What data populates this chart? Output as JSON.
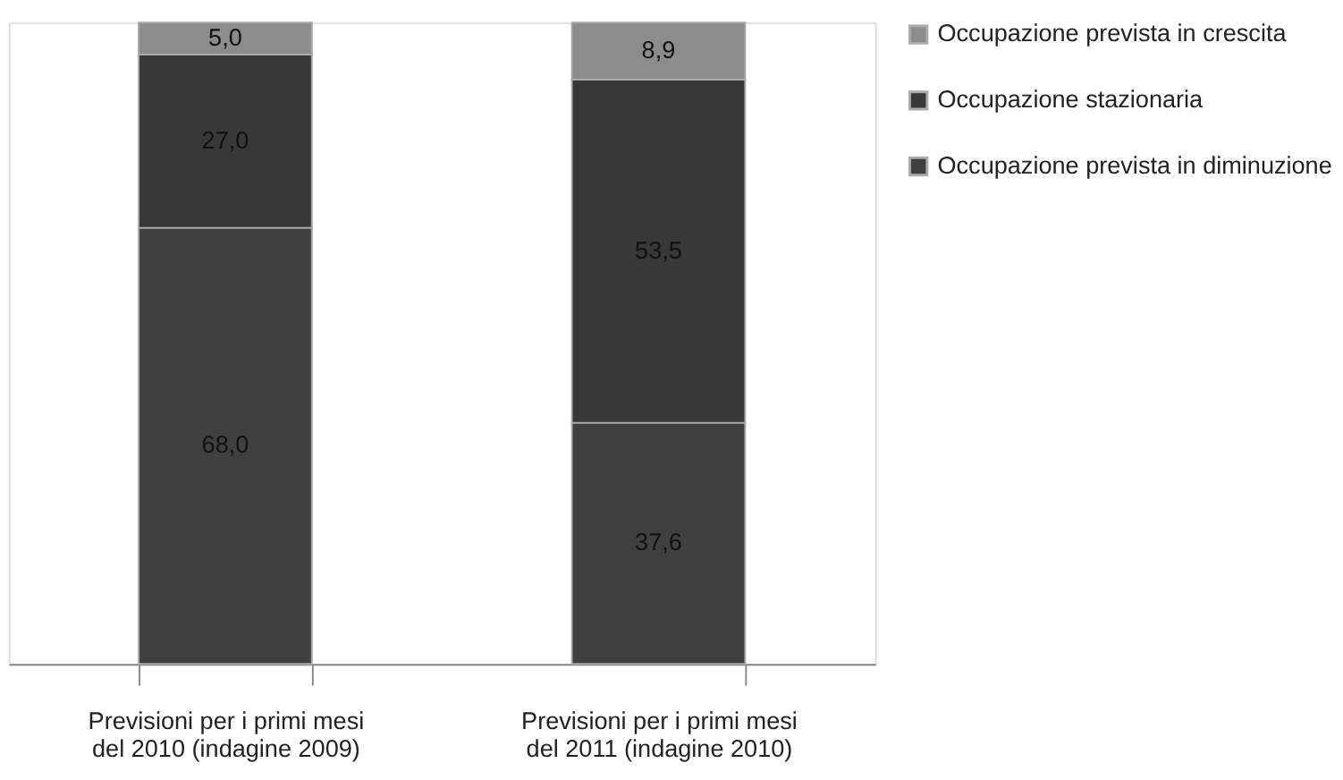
{
  "chart_data": {
    "type": "bar",
    "stacked": true,
    "legend": "right",
    "categories": [
      "Previsioni per i primi mesi del 2010 (indagine 2009)",
      "Previsioni per i primi mesi del 2011 (indagine 2010)"
    ],
    "series": [
      {
        "name": "Occupazione prevista in diminuzione",
        "color": "#404040",
        "values": [
          68.0,
          37.6
        ],
        "value_labels": [
          "68,0",
          "37,6"
        ]
      },
      {
        "name": "Occupazione stazionaria",
        "color": "#383838",
        "values": [
          27.0,
          53.5
        ],
        "value_labels": [
          "27,0",
          "53,5"
        ]
      },
      {
        "name": "Occupazione prevista in crescita",
        "color": "#8c8c8c",
        "values": [
          5.0,
          8.9
        ],
        "value_labels": [
          "5,0",
          "8,9"
        ]
      }
    ]
  }
}
